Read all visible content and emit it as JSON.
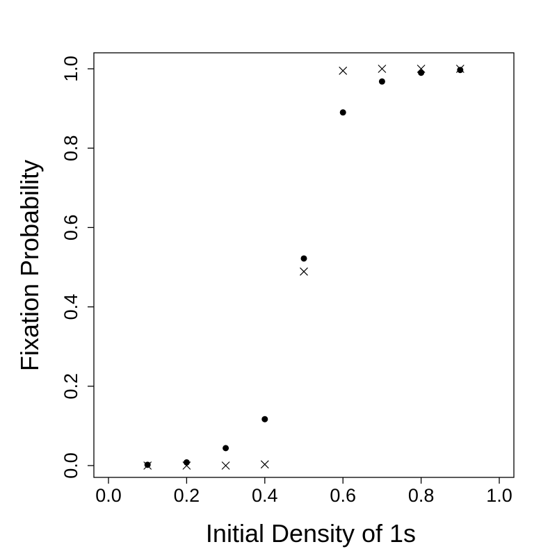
{
  "chart_data": {
    "type": "scatter",
    "xlabel": "Initial Density of 1s",
    "ylabel": "Fixation Probability",
    "xlim": [
      0.0,
      1.0
    ],
    "ylim": [
      0.0,
      1.0
    ],
    "xticks": [
      "0.0",
      "0.2",
      "0.4",
      "0.6",
      "0.8",
      "1.0"
    ],
    "yticks": [
      "0.0",
      "0.2",
      "0.4",
      "0.6",
      "0.8",
      "1.0"
    ],
    "grid": false,
    "legend": "none",
    "series": [
      {
        "marker": "filled-circle",
        "x": [
          0.1,
          0.2,
          0.3,
          0.4,
          0.5,
          0.6,
          0.7,
          0.8,
          0.9
        ],
        "y": [
          0.002,
          0.008,
          0.044,
          0.117,
          0.522,
          0.89,
          0.968,
          0.99,
          0.997
        ]
      },
      {
        "marker": "cross",
        "x": [
          0.1,
          0.2,
          0.3,
          0.4,
          0.5,
          0.6,
          0.7,
          0.8,
          0.9
        ],
        "y": [
          0.0,
          0.0,
          0.0,
          0.003,
          0.489,
          0.995,
          1.0,
          1.0,
          1.0
        ]
      }
    ],
    "colors": {
      "marks": "#000000",
      "axes": "#000000"
    }
  }
}
